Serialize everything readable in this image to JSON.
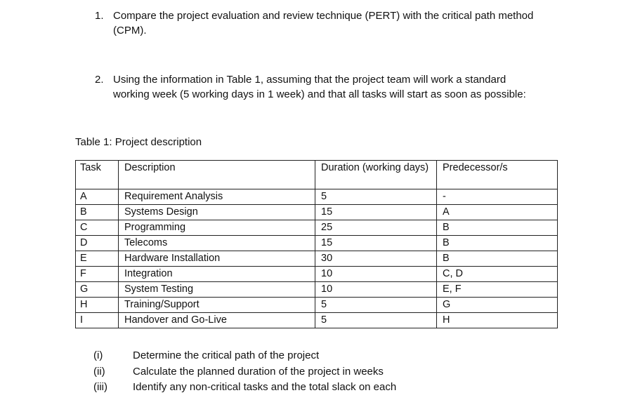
{
  "questions": [
    {
      "number": "1.",
      "text": "Compare the project evaluation and review technique (PERT) with the critical path method (CPM)."
    },
    {
      "number": "2.",
      "text": "Using the information in Table 1, assuming that the project team will work a standard working week (5 working days in 1 week) and that all tasks will start as soon as possible:"
    }
  ],
  "table": {
    "caption": "Table 1: Project description",
    "headers": [
      "Task",
      "Description",
      "Duration (working days)",
      "Predecessor/s"
    ],
    "rows": [
      [
        "A",
        "Requirement Analysis",
        "5",
        "-"
      ],
      [
        "B",
        "Systems Design",
        "15",
        "A"
      ],
      [
        "C",
        "Programming",
        "25",
        "B"
      ],
      [
        "D",
        "Telecoms",
        "15",
        "B"
      ],
      [
        "E",
        "Hardware Installation",
        "30",
        "B"
      ],
      [
        "F",
        "Integration",
        "10",
        "C, D"
      ],
      [
        "G",
        "System Testing",
        "10",
        "E, F"
      ],
      [
        "H",
        "Training/Support",
        "5",
        "G"
      ],
      [
        "I",
        "Handover and Go-Live",
        "5",
        "H"
      ]
    ]
  },
  "subquestions": [
    {
      "number": "(i)",
      "text": "Determine the critical path of the project"
    },
    {
      "number": "(ii)",
      "text": "Calculate the planned duration of the project in weeks"
    },
    {
      "number": "(iii)",
      "text": "Identify any non-critical tasks and the total slack on each"
    }
  ]
}
